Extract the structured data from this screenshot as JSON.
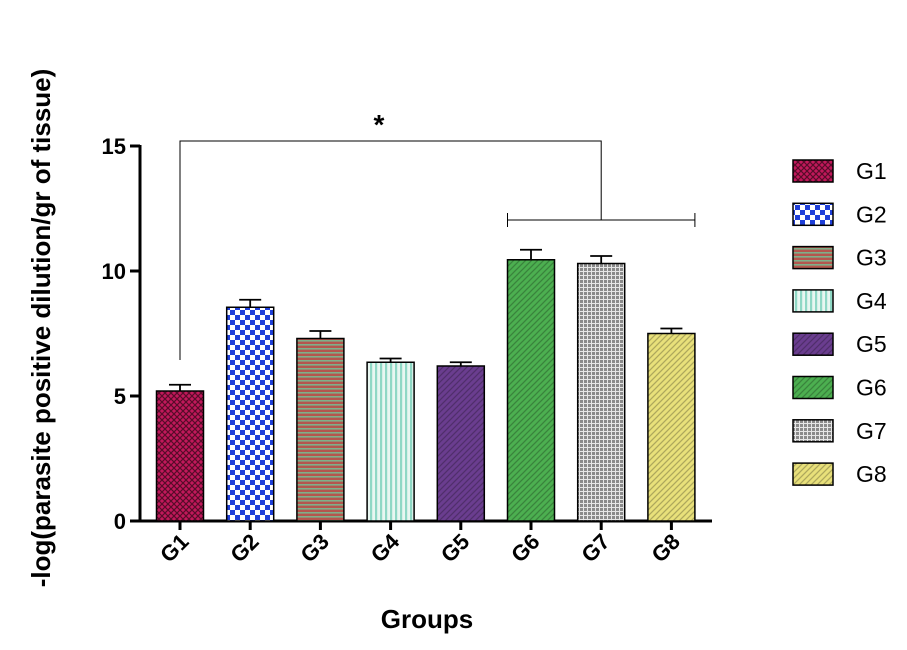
{
  "chart_data": {
    "type": "bar",
    "title": "",
    "xlabel": "Groups",
    "ylabel": "-log(parasite positive dilution/gr of tissue)",
    "ylim": [
      0,
      15
    ],
    "yticks": [
      0,
      5,
      10,
      15
    ],
    "categories": [
      "G1",
      "G2",
      "G3",
      "G4",
      "G5",
      "G6",
      "G7",
      "G8"
    ],
    "values": [
      5.2,
      8.55,
      7.3,
      6.35,
      6.2,
      10.45,
      10.3,
      7.5
    ],
    "errors": [
      0.25,
      0.3,
      0.3,
      0.15,
      0.15,
      0.4,
      0.3,
      0.2
    ],
    "colors": [
      "#c2185b",
      "#1f3fd8",
      "#b5564e",
      "#8fd8c5",
      "#6a3d8f",
      "#4caf50",
      "#8a8a8a",
      "#e8e07a"
    ],
    "patterns": [
      "crosshatch",
      "checker",
      "hstripes",
      "vstripes",
      "diagonal",
      "diagonal",
      "grid",
      "diagonal"
    ],
    "legend": [
      "G1",
      "G2",
      "G3",
      "G4",
      "G5",
      "G6",
      "G7",
      "G8"
    ],
    "legend_position": "right",
    "significance": {
      "label": "*",
      "from": "G1",
      "to_range": [
        "G6",
        "G8"
      ]
    },
    "grid": false
  }
}
